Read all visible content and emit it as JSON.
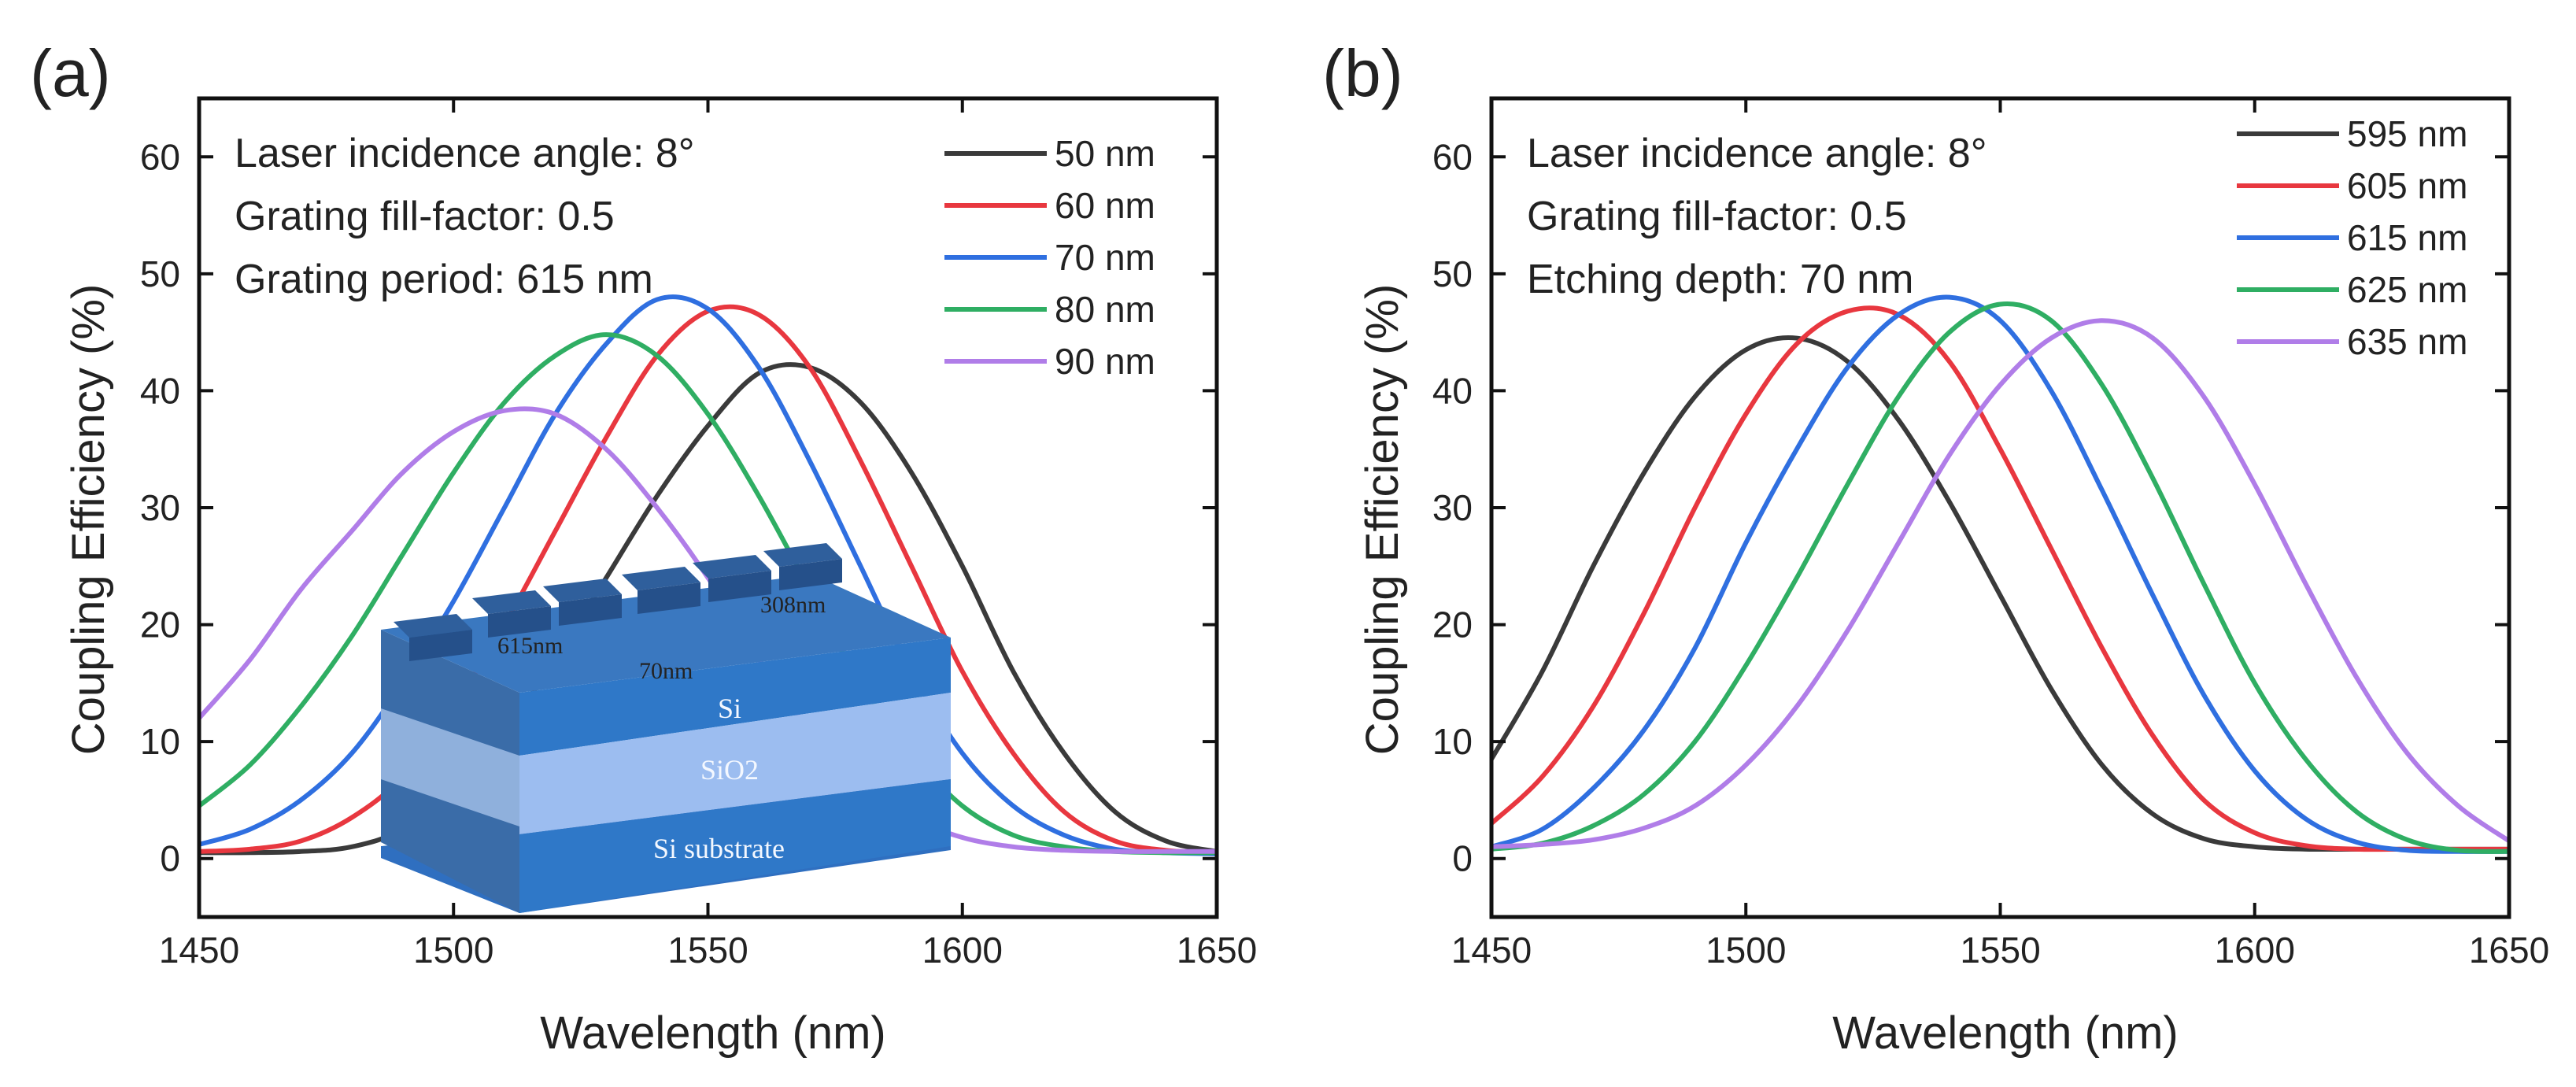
{
  "panels": [
    {
      "label": "(a)",
      "annotations": [
        "Laser incidence angle: 8°",
        "Grating fill-factor: 0.5",
        "Grating period: 615 nm"
      ],
      "inset": {
        "layers": [
          "Si",
          "SiO2",
          "Si substrate"
        ],
        "labels": [
          "615nm",
          "70nm",
          "308nm"
        ]
      }
    },
    {
      "label": "(b)",
      "annotations": [
        "Laser incidence angle: 8°",
        "Grating fill-factor: 0.5",
        "Etching depth: 70 nm"
      ]
    }
  ],
  "colors": {
    "black": "#3a3a3a",
    "red": "#e8373f",
    "blue": "#2f6fe0",
    "green": "#2fae63",
    "purple": "#b07de8"
  },
  "chart_data": [
    {
      "type": "line",
      "xlabel": "Wavelength (nm)",
      "ylabel": "Coupling Efficiency (%)",
      "xlim": [
        1450,
        1650
      ],
      "ylim": [
        -5,
        65
      ],
      "xticks": [
        1450,
        1500,
        1550,
        1600,
        1650
      ],
      "yticks": [
        0,
        10,
        20,
        30,
        40,
        50,
        60
      ],
      "legend_position": "top-right",
      "x": [
        1450,
        1460,
        1470,
        1480,
        1490,
        1500,
        1510,
        1520,
        1530,
        1540,
        1550,
        1560,
        1570,
        1580,
        1590,
        1600,
        1610,
        1620,
        1630,
        1640,
        1650
      ],
      "series": [
        {
          "name": "50 nm",
          "color": "black",
          "values": [
            0.5,
            0.5,
            0.6,
            1.0,
            2.5,
            6,
            11,
            17,
            24,
            31,
            37,
            41.5,
            42,
            39,
            33,
            25,
            16,
            9,
            4,
            1.5,
            0.6
          ]
        },
        {
          "name": "60 nm",
          "color": "red",
          "values": [
            0.6,
            0.8,
            1.5,
            3.5,
            7,
            13,
            20,
            28,
            36,
            43,
            46.8,
            46.5,
            42,
            34,
            25,
            16,
            9,
            4,
            1.5,
            0.7,
            0.5
          ]
        },
        {
          "name": "70 nm",
          "color": "blue",
          "values": [
            1.2,
            2.5,
            5,
            9,
            15,
            22,
            30,
            38,
            44,
            47.8,
            47,
            42,
            34,
            25,
            16,
            9,
            4.5,
            2,
            0.8,
            0.5,
            0.4
          ]
        },
        {
          "name": "80 nm",
          "color": "green",
          "values": [
            4.5,
            8,
            13,
            19,
            26,
            33,
            39,
            43,
            44.8,
            43,
            38,
            31,
            23,
            15,
            9,
            4.5,
            2,
            1,
            0.6,
            0.5,
            0.5
          ]
        },
        {
          "name": "90 nm",
          "color": "purple",
          "values": [
            12,
            17,
            23,
            28,
            33,
            36.5,
            38.3,
            38,
            35,
            30,
            24,
            17,
            11,
            6.5,
            3.5,
            1.8,
            1,
            0.7,
            0.6,
            0.6,
            0.6
          ]
        }
      ]
    },
    {
      "type": "line",
      "xlabel": "Wavelength (nm)",
      "ylabel": "Coupling Efficiency (%)",
      "xlim": [
        1450,
        1650
      ],
      "ylim": [
        -5,
        65
      ],
      "xticks": [
        1450,
        1500,
        1550,
        1600,
        1650
      ],
      "yticks": [
        0,
        10,
        20,
        30,
        40,
        50,
        60
      ],
      "legend_position": "top-right",
      "x": [
        1450,
        1460,
        1470,
        1480,
        1490,
        1500,
        1510,
        1520,
        1530,
        1540,
        1550,
        1560,
        1570,
        1580,
        1590,
        1600,
        1610,
        1620,
        1630,
        1640,
        1650
      ],
      "series": [
        {
          "name": "595 nm",
          "color": "black",
          "values": [
            8.5,
            16,
            25,
            33,
            39.5,
            43.5,
            44.5,
            42.5,
            37.5,
            30.5,
            22.5,
            14.5,
            8,
            3.8,
            1.7,
            1,
            0.8,
            0.8,
            0.8,
            0.8,
            0.8
          ]
        },
        {
          "name": "605 nm",
          "color": "red",
          "values": [
            3,
            7,
            13,
            21,
            30,
            38,
            44,
            46.8,
            46.5,
            42.5,
            35,
            26.5,
            18,
            10.5,
            5,
            2.2,
            1.1,
            0.8,
            0.8,
            0.8,
            0.8
          ]
        },
        {
          "name": "615 nm",
          "color": "blue",
          "values": [
            1,
            2.5,
            6,
            11,
            18,
            27,
            35,
            42,
            46.5,
            48,
            46,
            40,
            31.5,
            22.5,
            14,
            7.5,
            3.4,
            1.4,
            0.7,
            0.6,
            0.6
          ]
        },
        {
          "name": "625 nm",
          "color": "green",
          "values": [
            0.8,
            1.3,
            2.8,
            5.5,
            10,
            16.5,
            24,
            32,
            39.5,
            45,
            47.4,
            46,
            40.5,
            32.5,
            23.5,
            15,
            8.5,
            4,
            1.6,
            0.7,
            0.6
          ]
        },
        {
          "name": "635 nm",
          "color": "purple",
          "values": [
            1,
            1.2,
            1.6,
            2.6,
            4.5,
            8,
            13,
            19.5,
            27,
            34.5,
            40.5,
            44.5,
            46,
            44.5,
            39.5,
            32,
            23.5,
            15.5,
            9,
            4.5,
            1.5
          ]
        }
      ]
    }
  ]
}
